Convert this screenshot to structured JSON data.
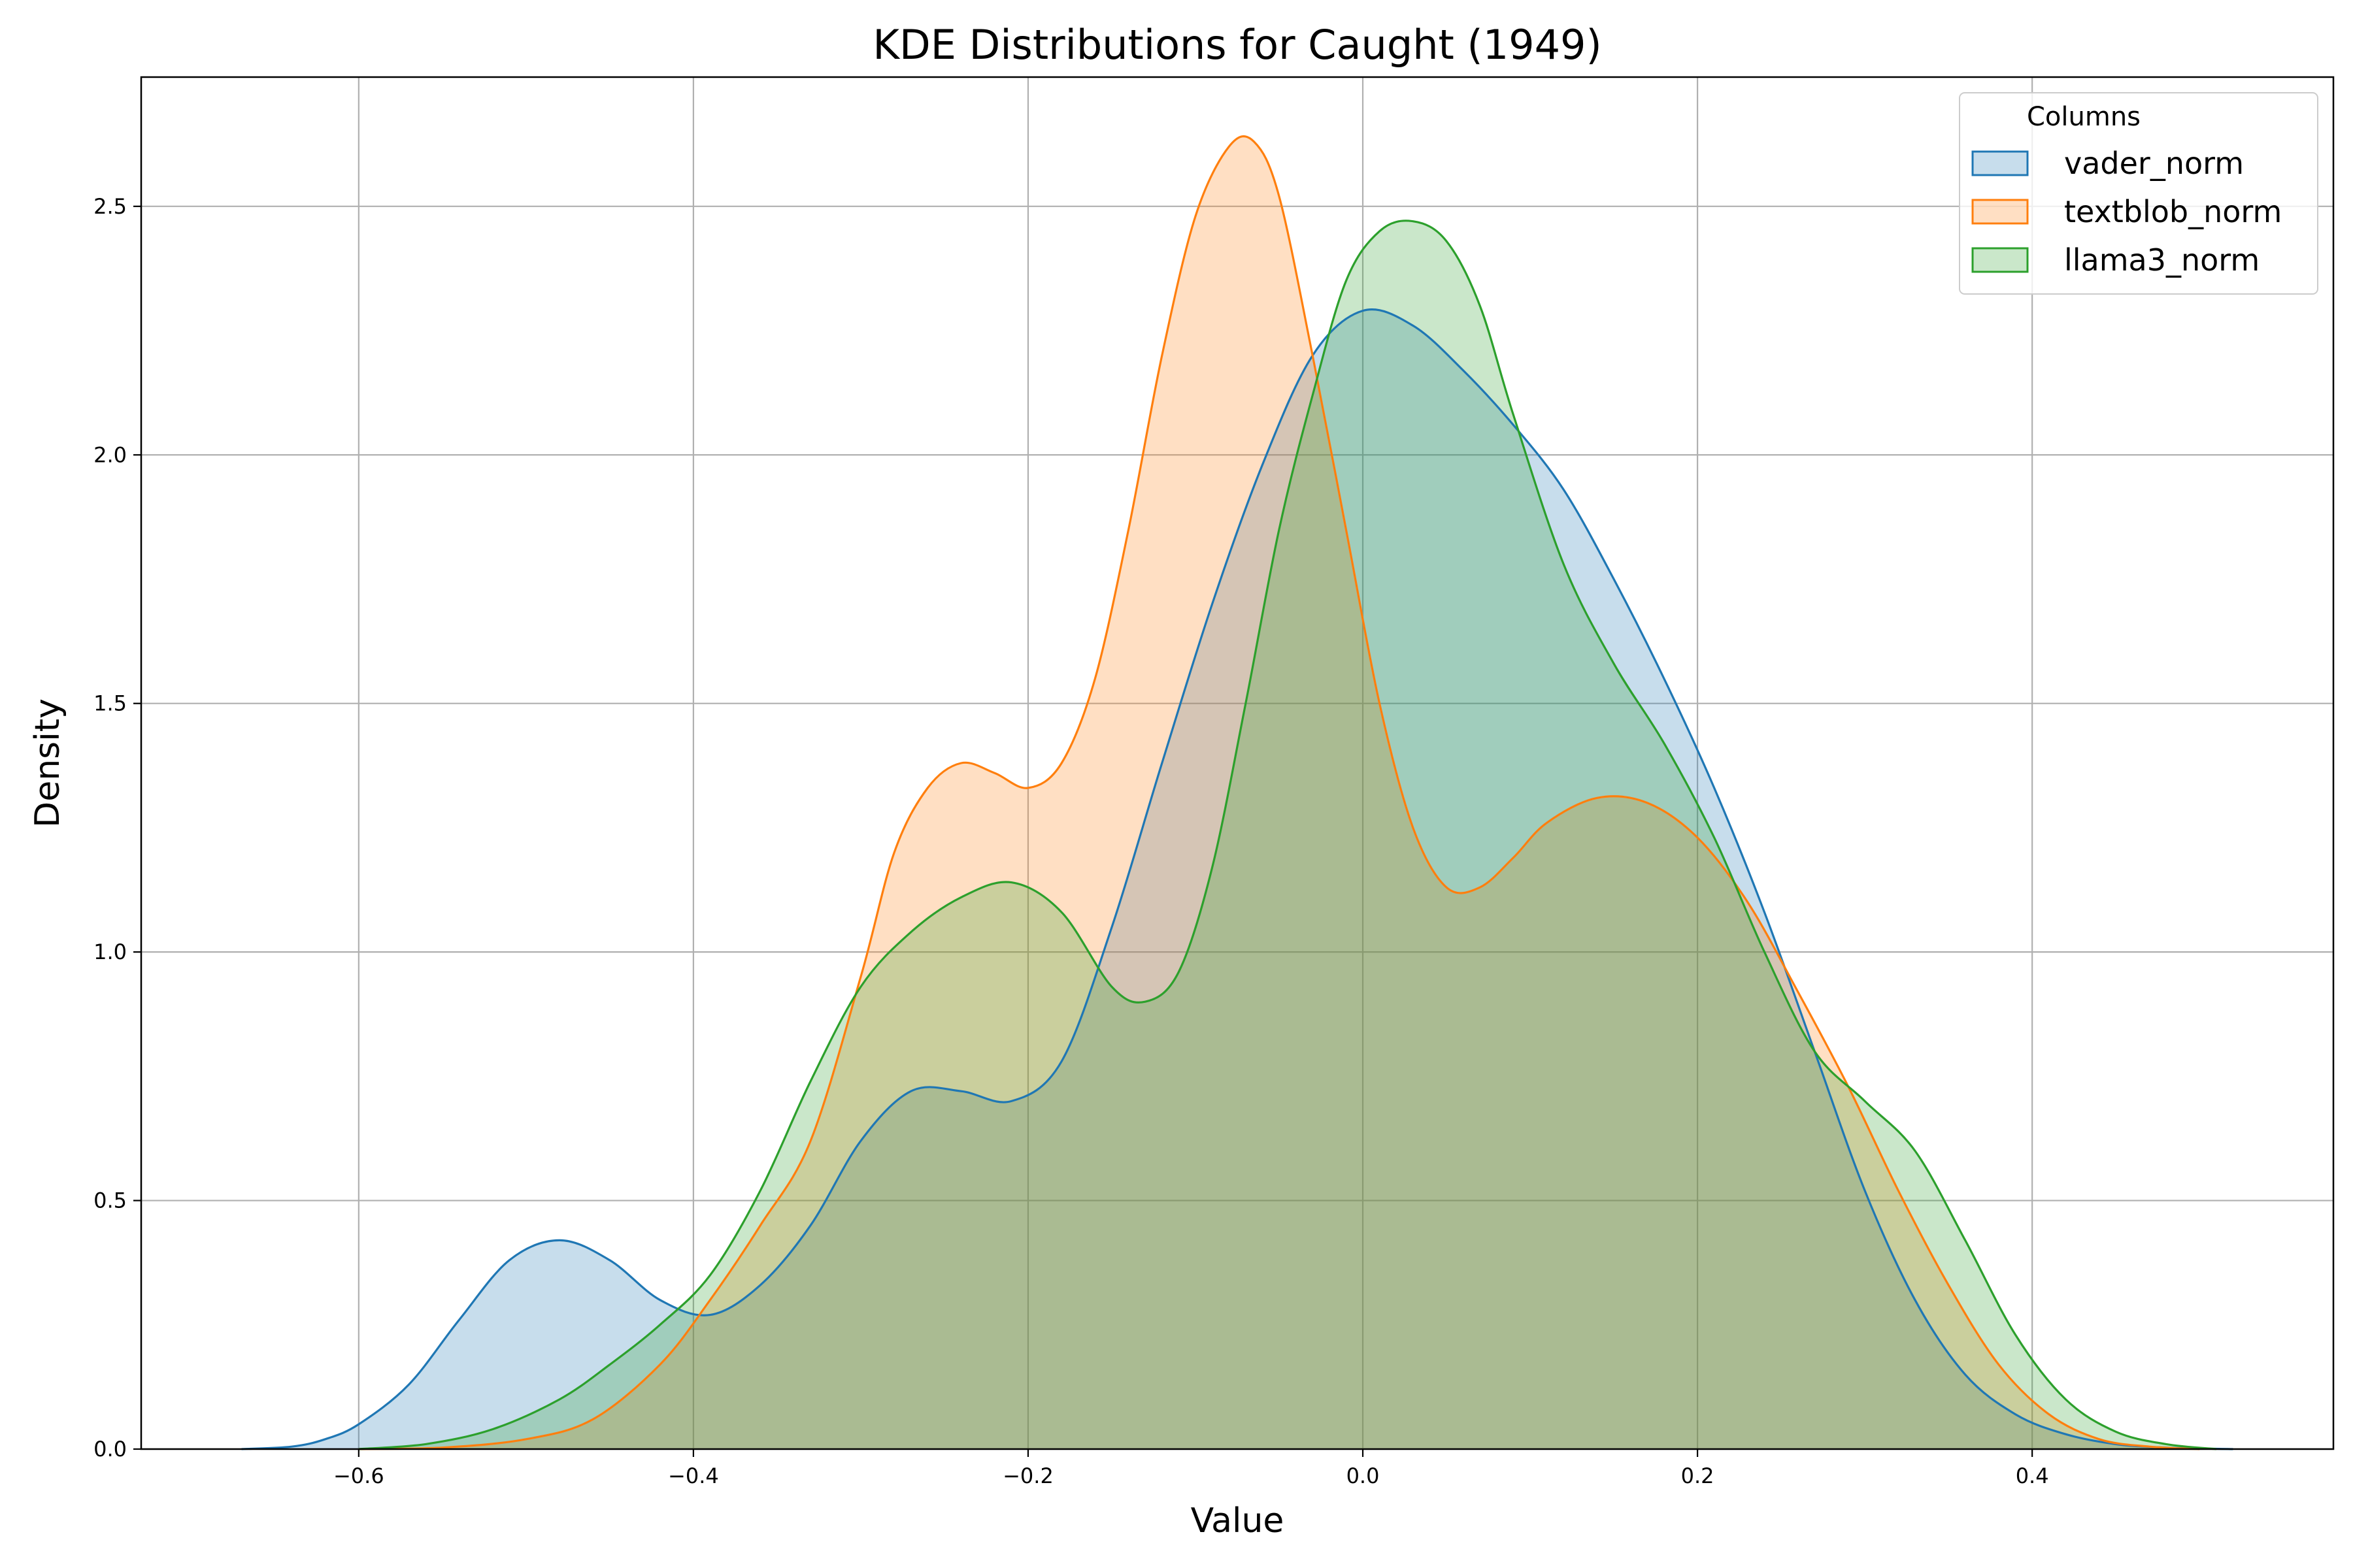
{
  "chart_data": {
    "type": "area",
    "title": "KDE Distributions for Caught (1949)",
    "xlabel": "Value",
    "ylabel": "Density",
    "xlim": [
      -0.73,
      0.58
    ],
    "ylim": [
      0,
      2.76
    ],
    "xticks": [
      -0.6,
      -0.4,
      -0.2,
      0.0,
      0.2,
      0.4
    ],
    "xtick_labels": [
      "−0.6",
      "−0.4",
      "−0.2",
      "0.0",
      "0.2",
      "0.4"
    ],
    "yticks": [
      0.0,
      0.5,
      1.0,
      1.5,
      2.0,
      2.5
    ],
    "ytick_labels": [
      "0.0",
      "0.5",
      "1.0",
      "1.5",
      "2.0",
      "2.5"
    ],
    "grid": true,
    "legend": {
      "title": "Columns",
      "placement": "top-right"
    },
    "series": [
      {
        "name": "vader_norm",
        "color": "#1f77b4",
        "x": [
          -0.67,
          -0.64,
          -0.62,
          -0.6,
          -0.57,
          -0.54,
          -0.51,
          -0.48,
          -0.45,
          -0.42,
          -0.39,
          -0.36,
          -0.33,
          -0.3,
          -0.27,
          -0.24,
          -0.21,
          -0.18,
          -0.15,
          -0.12,
          -0.09,
          -0.06,
          -0.03,
          0.0,
          0.03,
          0.06,
          0.09,
          0.12,
          0.15,
          0.18,
          0.21,
          0.24,
          0.27,
          0.3,
          0.33,
          0.36,
          0.39,
          0.42,
          0.45,
          0.48,
          0.52
        ],
        "y": [
          0.0,
          0.005,
          0.02,
          0.05,
          0.13,
          0.26,
          0.38,
          0.42,
          0.38,
          0.3,
          0.27,
          0.33,
          0.45,
          0.62,
          0.72,
          0.72,
          0.7,
          0.78,
          1.05,
          1.38,
          1.7,
          1.98,
          2.2,
          2.29,
          2.26,
          2.17,
          2.06,
          1.93,
          1.75,
          1.55,
          1.33,
          1.08,
          0.8,
          0.52,
          0.3,
          0.15,
          0.07,
          0.03,
          0.01,
          0.003,
          0.0
        ]
      },
      {
        "name": "textblob_norm",
        "color": "#ff7f0e",
        "x": [
          -0.6,
          -0.55,
          -0.5,
          -0.46,
          -0.42,
          -0.39,
          -0.36,
          -0.33,
          -0.3,
          -0.28,
          -0.26,
          -0.24,
          -0.22,
          -0.2,
          -0.18,
          -0.16,
          -0.14,
          -0.12,
          -0.1,
          -0.08,
          -0.065,
          -0.05,
          -0.03,
          -0.01,
          0.01,
          0.03,
          0.05,
          0.07,
          0.09,
          0.11,
          0.14,
          0.17,
          0.2,
          0.23,
          0.26,
          0.29,
          0.32,
          0.35,
          0.38,
          0.41,
          0.44,
          0.47,
          0.5
        ],
        "y": [
          0.0,
          0.003,
          0.02,
          0.06,
          0.17,
          0.3,
          0.45,
          0.62,
          0.95,
          1.2,
          1.33,
          1.38,
          1.36,
          1.33,
          1.38,
          1.55,
          1.85,
          2.2,
          2.48,
          2.62,
          2.63,
          2.52,
          2.2,
          1.85,
          1.5,
          1.25,
          1.13,
          1.13,
          1.19,
          1.26,
          1.31,
          1.3,
          1.23,
          1.1,
          0.92,
          0.73,
          0.52,
          0.33,
          0.17,
          0.07,
          0.02,
          0.005,
          0.0
        ]
      },
      {
        "name": "llama3_norm",
        "color": "#2ca02c",
        "x": [
          -0.6,
          -0.56,
          -0.52,
          -0.48,
          -0.45,
          -0.42,
          -0.39,
          -0.36,
          -0.33,
          -0.3,
          -0.27,
          -0.24,
          -0.21,
          -0.18,
          -0.15,
          -0.13,
          -0.11,
          -0.09,
          -0.07,
          -0.05,
          -0.03,
          -0.01,
          0.01,
          0.03,
          0.05,
          0.07,
          0.09,
          0.12,
          0.15,
          0.18,
          0.21,
          0.24,
          0.27,
          0.3,
          0.33,
          0.36,
          0.39,
          0.42,
          0.45,
          0.48,
          0.51
        ],
        "y": [
          0.0,
          0.01,
          0.04,
          0.1,
          0.17,
          0.25,
          0.35,
          0.52,
          0.74,
          0.93,
          1.04,
          1.11,
          1.14,
          1.08,
          0.93,
          0.9,
          0.96,
          1.17,
          1.5,
          1.85,
          2.12,
          2.35,
          2.45,
          2.47,
          2.43,
          2.3,
          2.08,
          1.78,
          1.58,
          1.42,
          1.23,
          1.0,
          0.8,
          0.7,
          0.6,
          0.42,
          0.23,
          0.1,
          0.035,
          0.01,
          0.0
        ]
      }
    ]
  }
}
